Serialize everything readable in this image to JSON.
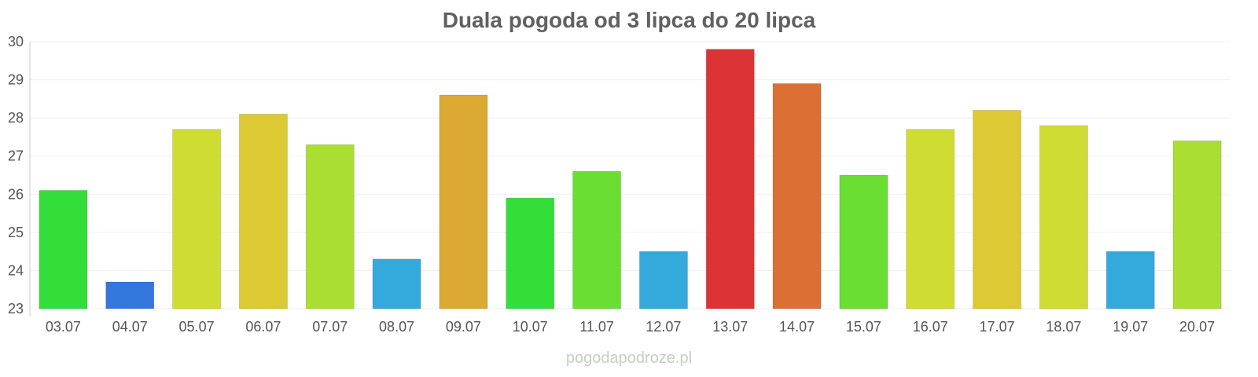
{
  "chart_data": {
    "type": "bar",
    "title": "Duala pogoda od 3 lipca do 20 lipca",
    "xlabel": "",
    "ylabel": "",
    "ylim": [
      23,
      30
    ],
    "yticks": [
      23,
      24,
      25,
      26,
      27,
      28,
      29,
      30
    ],
    "grid": true,
    "legend": "none",
    "categories": [
      "03.07",
      "04.07",
      "05.07",
      "06.07",
      "07.07",
      "08.07",
      "09.07",
      "10.07",
      "11.07",
      "12.07",
      "13.07",
      "14.07",
      "15.07",
      "16.07",
      "17.07",
      "18.07",
      "19.07",
      "20.07"
    ],
    "values": [
      26.1,
      23.7,
      27.7,
      28.1,
      27.3,
      24.3,
      28.6,
      25.9,
      26.6,
      24.5,
      29.8,
      28.9,
      26.5,
      27.7,
      28.2,
      27.8,
      24.5,
      27.4
    ],
    "colors": [
      "#33dd3a",
      "#3377dd",
      "#cfdd33",
      "#dcc933",
      "#aade33",
      "#34a9dc",
      "#dcaa33",
      "#33dd3a",
      "#6ade33",
      "#34a9dc",
      "#dc3434",
      "#dc7034",
      "#6ade33",
      "#cfdd33",
      "#dcc933",
      "#cfdd33",
      "#34a9dc",
      "#aade33"
    ]
  },
  "source": "pogodapodroze.pl"
}
